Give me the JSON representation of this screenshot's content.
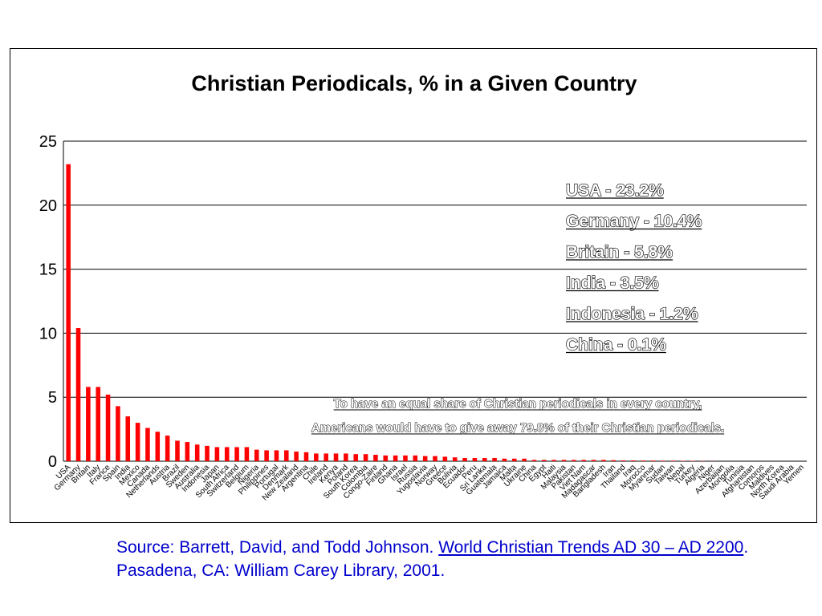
{
  "chart_data": {
    "type": "bar",
    "title": "Christian Periodicals, % in a Given Country",
    "xlabel": "",
    "ylabel": "",
    "ylim": [
      0,
      25
    ],
    "yticks": [
      "0",
      "5",
      "10",
      "15",
      "20",
      "25"
    ],
    "grid": true,
    "bar_color": "#ff0000",
    "categories": [
      "USA",
      "Germany",
      "Britain",
      "Italy",
      "France",
      "Spain",
      "India",
      "Mexico",
      "Canada",
      "Netherlands",
      "Austria",
      "Brazil",
      "Sweden",
      "Australia",
      "Indonesia",
      "Japan",
      "South Africa",
      "Switzerland",
      "Belgium",
      "Nigeria",
      "Philippines",
      "Portugal",
      "Denmark",
      "New Zealand",
      "Argentina",
      "Chile",
      "Ireland",
      "Kenya",
      "Poland",
      "South Korea",
      "Colombia",
      "Congo-Zaire",
      "Finland",
      "Ghana",
      "Israel",
      "Russia",
      "Yugoslavia",
      "Norway",
      "Greece",
      "Bolivia",
      "Ecuador",
      "Peru",
      "Sri Lanka",
      "Guatemala",
      "Jamaica",
      "Malta",
      "Ukraine",
      "China",
      "Egypt",
      "Haiti",
      "Malaysia",
      "Pakistan",
      "Viet Nam",
      "Madagascar",
      "Bangladesh",
      "Iran",
      "Thailand",
      "Iraq",
      "Morocco",
      "Myanmar",
      "Sudan",
      "Taiwan",
      "Nepal",
      "Turkey",
      "Algeria",
      "Niger",
      "Azerbaijan",
      "Mongolia",
      "Tunisia",
      "Afghanistan",
      "Comoros",
      "Maldives",
      "North Korea",
      "Saudi Arabia",
      "Yemen"
    ],
    "values": [
      23.2,
      10.4,
      5.8,
      5.8,
      5.2,
      4.3,
      3.5,
      3.0,
      2.6,
      2.3,
      2.0,
      1.6,
      1.5,
      1.3,
      1.2,
      1.1,
      1.1,
      1.1,
      1.1,
      0.9,
      0.85,
      0.85,
      0.85,
      0.75,
      0.7,
      0.6,
      0.6,
      0.6,
      0.6,
      0.55,
      0.55,
      0.5,
      0.45,
      0.45,
      0.45,
      0.45,
      0.4,
      0.4,
      0.35,
      0.3,
      0.25,
      0.25,
      0.25,
      0.25,
      0.2,
      0.2,
      0.2,
      0.1,
      0.1,
      0.1,
      0.1,
      0.1,
      0.1,
      0.1,
      0.1,
      0.08,
      0.06,
      0.06,
      0.05,
      0.05,
      0.04,
      0.04,
      0.03,
      0.03,
      0.02,
      0.01,
      0,
      0,
      0,
      0,
      0,
      0,
      0,
      0,
      0
    ]
  },
  "callouts": [
    "USA - 23.2%",
    "Germany - 10.4%",
    "Britain - 5.8%",
    "India - 3.5%",
    "Indonesia - 1.2%",
    "China - 0.1%"
  ],
  "note_lines": [
    "To have an equal share of Christian periodicals in every country,",
    "Americans would have to give away 79.8% of their Christian periodicals."
  ],
  "source": {
    "prefix": "Source:  Barrett, David, and Todd Johnson.  ",
    "book_title": "World Christian Trends AD 30 – AD 2200",
    "suffix": ".   Pasadena, CA:  William Carey Library, 2001."
  }
}
